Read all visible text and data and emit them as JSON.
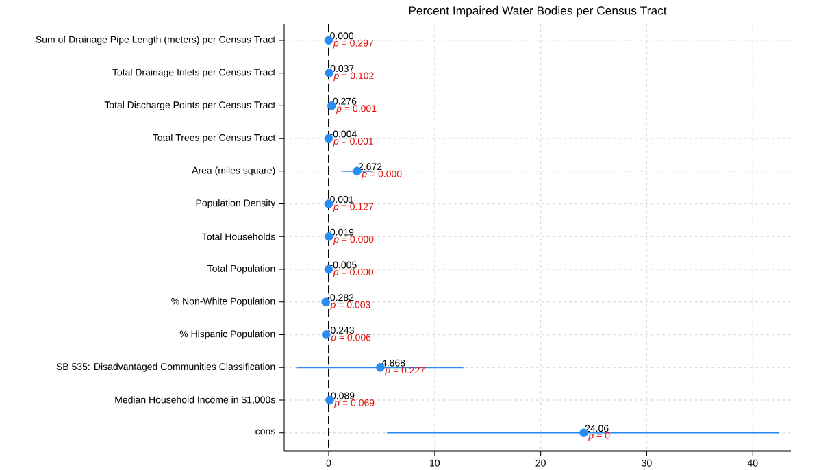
{
  "chart_data": {
    "type": "scatter",
    "orientation": "horizontal",
    "title": "Percent Impaired Water Bodies per Census Tract",
    "categories": [
      "Sum of Drainage Pipe Length (meters) per Census Tract",
      "Total Drainage Inlets per Census Tract",
      "Total Discharge Points per Census Tract",
      "Total Trees per Census Tract",
      "Area (miles square)",
      "Population Density",
      "Total Households",
      "Total Population",
      "% Non-White Population",
      "% Hispanic Population",
      "SB 535: Disadvantaged Communities Classification",
      "Median Household Income in $1,000s",
      "_cons"
    ],
    "values": [
      0.0,
      0.037,
      0.276,
      -0.004,
      2.672,
      0.001,
      0.019,
      -0.005,
      -0.282,
      -0.243,
      4.868,
      0.089,
      24.06
    ],
    "value_labels": [
      "0.000",
      "0.037",
      "0.276",
      "-0.004",
      "2.672",
      "0.001",
      "0.019",
      "-0.005",
      "-0.282",
      "-0.243",
      "4.868",
      "0.089",
      "24.06"
    ],
    "errors": [
      null,
      null,
      null,
      null,
      [
        1.25,
        4.1
      ],
      null,
      null,
      null,
      null,
      null,
      [
        -3.0,
        12.7
      ],
      null,
      [
        5.5,
        42.5
      ]
    ],
    "color": "#2a8bf2",
    "xlim": [
      -4.2,
      43.6
    ],
    "xticks": [
      0,
      10,
      20,
      30,
      40
    ],
    "grid": true,
    "ref_lines": [
      {
        "axis": "x",
        "value": 0,
        "color": "#000000",
        "line_style": "dashed"
      }
    ],
    "annotations": [
      "*p* = 0.297",
      "*p* = 0.102",
      "*p* = 0.001",
      "*p* = 0.001",
      "*p* = 0.000",
      "*p* = 0.127",
      "*p* = 0.000",
      "*p* = 0.000",
      "*p* = 0.003",
      "*p* = 0.006",
      "*p* = 0.227",
      "*p* = 0.069",
      "*p* = 0"
    ]
  }
}
